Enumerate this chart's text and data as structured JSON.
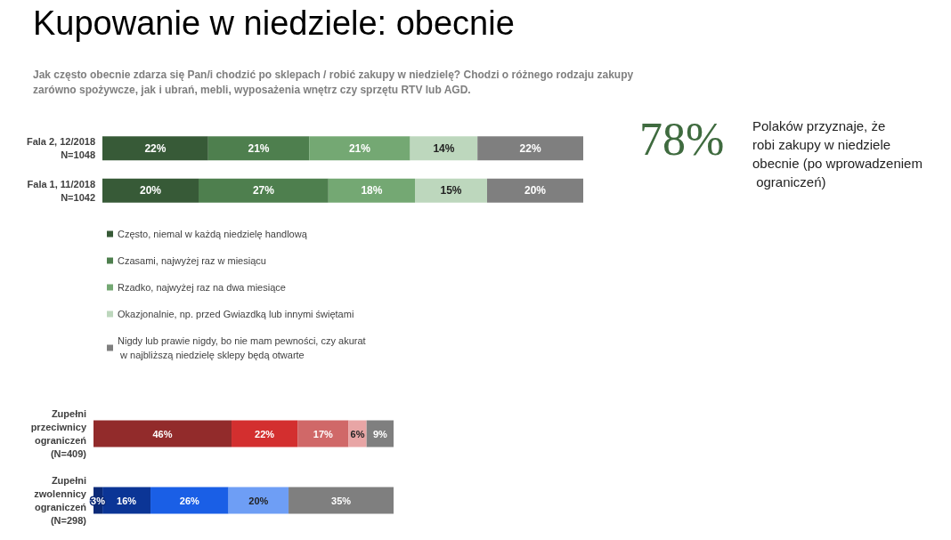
{
  "chart_data": [
    {
      "type": "bar",
      "orientation": "horizontal",
      "stacked": true,
      "legend": "bottom left",
      "title": "Kupowanie w niedziele: obecnie",
      "subtitle": "Jak często obecnie zdarza się Pan/i chodzić po sklepach / robić zakupy w niedzielę? Chodzi o różnego rodzaju zakupy zarówno spożywcze, jak i ubrań, mebli, wyposażenia wnętrz czy sprzętu RTV lub AGD.",
      "annotations": [
        "78%",
        "Polaków przyznaje, że robi zakupy w niedziele obecnie (po wprowadzeniem ograniczeń)"
      ],
      "categories": [
        "Fala 2, 12/2018\nN=1048",
        "Fala 1, 11/2018\nN=1042"
      ],
      "series": [
        {
          "name": "Często, niemal w każdą niedzielę handlową",
          "color": "#375a37",
          "values": [
            22,
            20
          ],
          "value_labels": [
            "22%",
            "20%"
          ]
        },
        {
          "name": "Czasami, najwyżej raz w miesiącu",
          "color": "#4e7f4e",
          "values": [
            21,
            27
          ],
          "value_labels": [
            "21%",
            "27%"
          ]
        },
        {
          "name": "Rzadko, najwyżej raz na dwa miesiące",
          "color": "#74a873",
          "values": [
            21,
            18
          ],
          "value_labels": [
            "21%",
            "18%"
          ]
        },
        {
          "name": "Okazjonalnie, np. przed Gwiazdką lub innymi świętami",
          "color": "#bdd7bd",
          "values": [
            14,
            15
          ],
          "value_labels": [
            "14%",
            "15%"
          ]
        },
        {
          "name": "Nigdy lub prawie nigdy, bo nie mam pewności, czy akurat w najbliższą niedzielę sklepy będą otwarte",
          "color": "#7f7f7f",
          "values": [
            22,
            20
          ],
          "value_labels": [
            "22%",
            "20%"
          ]
        }
      ]
    },
    {
      "type": "bar",
      "orientation": "horizontal",
      "stacked": true,
      "categories": [
        "Zupełni\nprzeciwnicy\nograniczeń\n(N=409)",
        "Zupełni\nzwolennicy\nograniczeń\n(N=298)"
      ],
      "series": [
        {
          "colors": [
            "#922b2b",
            "#0b2a78"
          ],
          "values": [
            46,
            3
          ],
          "value_labels": [
            "46%",
            "3%"
          ]
        },
        {
          "colors": [
            "#d32f2f",
            "#0b3596"
          ],
          "values": [
            22,
            16
          ],
          "value_labels": [
            "22%",
            "16%"
          ]
        },
        {
          "colors": [
            "#d06868",
            "#1a5fe6"
          ],
          "values": [
            17,
            26
          ],
          "value_labels": [
            "17%",
            "26%"
          ]
        },
        {
          "colors": [
            "#e8a5a5",
            "#6e9ef5"
          ],
          "values": [
            6,
            20
          ],
          "value_labels": [
            "6%",
            "20%"
          ]
        },
        {
          "colors": [
            "#7f7f7f",
            "#7f7f7f"
          ],
          "values": [
            9,
            35
          ],
          "value_labels": [
            "9%",
            "35%"
          ]
        }
      ]
    }
  ]
}
